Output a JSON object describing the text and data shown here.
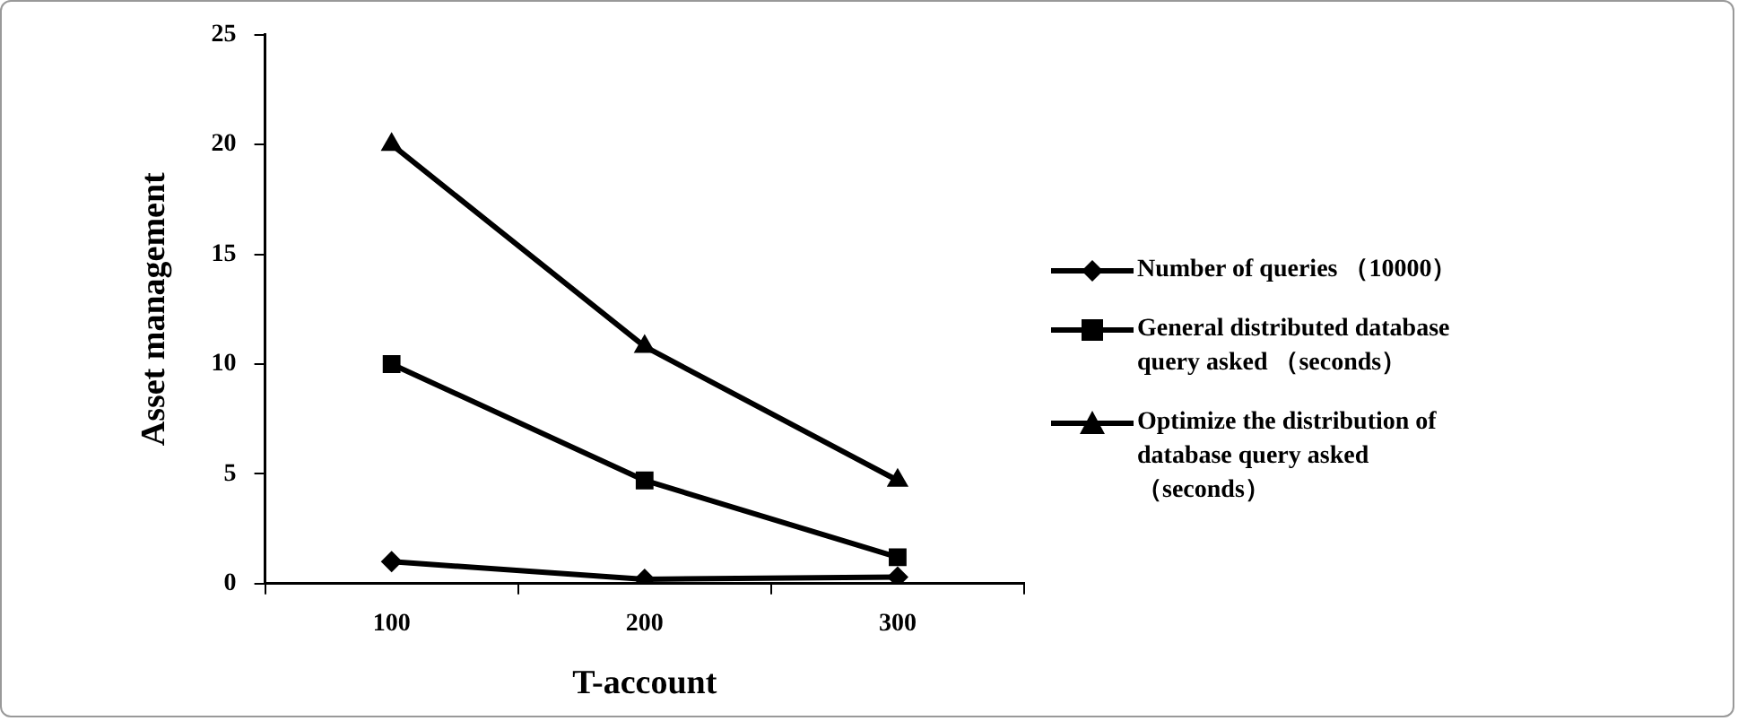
{
  "chart_data": {
    "type": "line",
    "xlabel": "T-account",
    "ylabel": "Asset management",
    "categories": [
      "100",
      "200",
      "300"
    ],
    "series": [
      {
        "name": "Number of queries （10000）",
        "color": "#000000",
        "marker": "diamond",
        "values": [
          1.0,
          0.2,
          0.3
        ]
      },
      {
        "name": "General distributed database query asked （seconds）",
        "color": "#000000",
        "marker": "square",
        "values": [
          10,
          4.7,
          1.2
        ]
      },
      {
        "name": "Optimize the distribution of database query asked （seconds）",
        "color": "#000000",
        "marker": "triangle",
        "values": [
          20,
          10.8,
          4.7
        ]
      }
    ],
    "ylim": [
      0,
      25
    ],
    "yticks": [
      0,
      5,
      10,
      15,
      20,
      25
    ],
    "grid": false,
    "legend": "right",
    "line_style": "solid"
  }
}
